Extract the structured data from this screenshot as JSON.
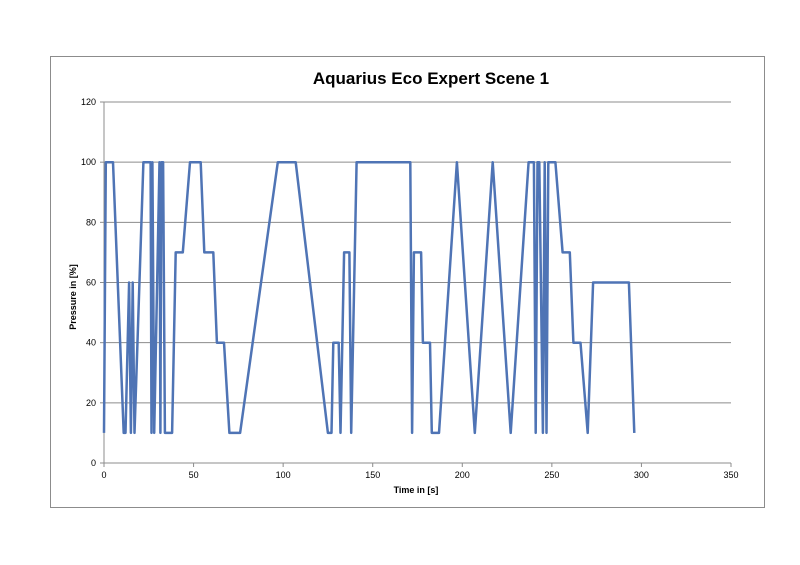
{
  "chart_data": {
    "type": "line",
    "title": "Aquarius Eco Expert Scene 1",
    "xlabel": "Time in [s]",
    "ylabel": "Pressure in [%]",
    "xlim": [
      0,
      350
    ],
    "ylim": [
      0,
      120
    ],
    "x_ticks": [
      "0",
      "50",
      "100",
      "150",
      "200",
      "250",
      "300",
      "350"
    ],
    "y_ticks": [
      "0",
      "20",
      "40",
      "60",
      "80",
      "100",
      "120"
    ],
    "grid": "horizontal",
    "legend": "none",
    "line_color": "#4f74b5",
    "series": [
      {
        "x": [
          0,
          1,
          5,
          11,
          12,
          14,
          15,
          16,
          17,
          22,
          26,
          26.5,
          27,
          28,
          31,
          31.5,
          32,
          33,
          34,
          35,
          38,
          39,
          40,
          44,
          48,
          54,
          56,
          61,
          63,
          67,
          70,
          71,
          76,
          97,
          107,
          125,
          127,
          128,
          131,
          132,
          134,
          137,
          138,
          141,
          143,
          171,
          172,
          173,
          177,
          178,
          182,
          183,
          187,
          197,
          207,
          217,
          227,
          237,
          240,
          241,
          242,
          243,
          245,
          246,
          247,
          248,
          252,
          256,
          260,
          262,
          266,
          270,
          273,
          293,
          296
        ],
        "y": [
          10,
          100,
          100,
          10,
          10,
          60,
          10,
          60,
          10,
          100,
          100,
          10,
          100,
          10,
          100,
          10,
          100,
          100,
          10,
          10,
          10,
          40,
          70,
          70,
          100,
          100,
          70,
          70,
          40,
          40,
          10,
          10,
          10,
          100,
          100,
          10,
          10,
          40,
          40,
          10,
          70,
          70,
          10,
          100,
          100,
          100,
          10,
          70,
          70,
          40,
          40,
          10,
          10,
          100,
          10,
          100,
          10,
          100,
          100,
          10,
          100,
          100,
          10,
          100,
          10,
          100,
          100,
          70,
          70,
          40,
          40,
          10,
          60,
          60,
          10
        ]
      }
    ]
  }
}
